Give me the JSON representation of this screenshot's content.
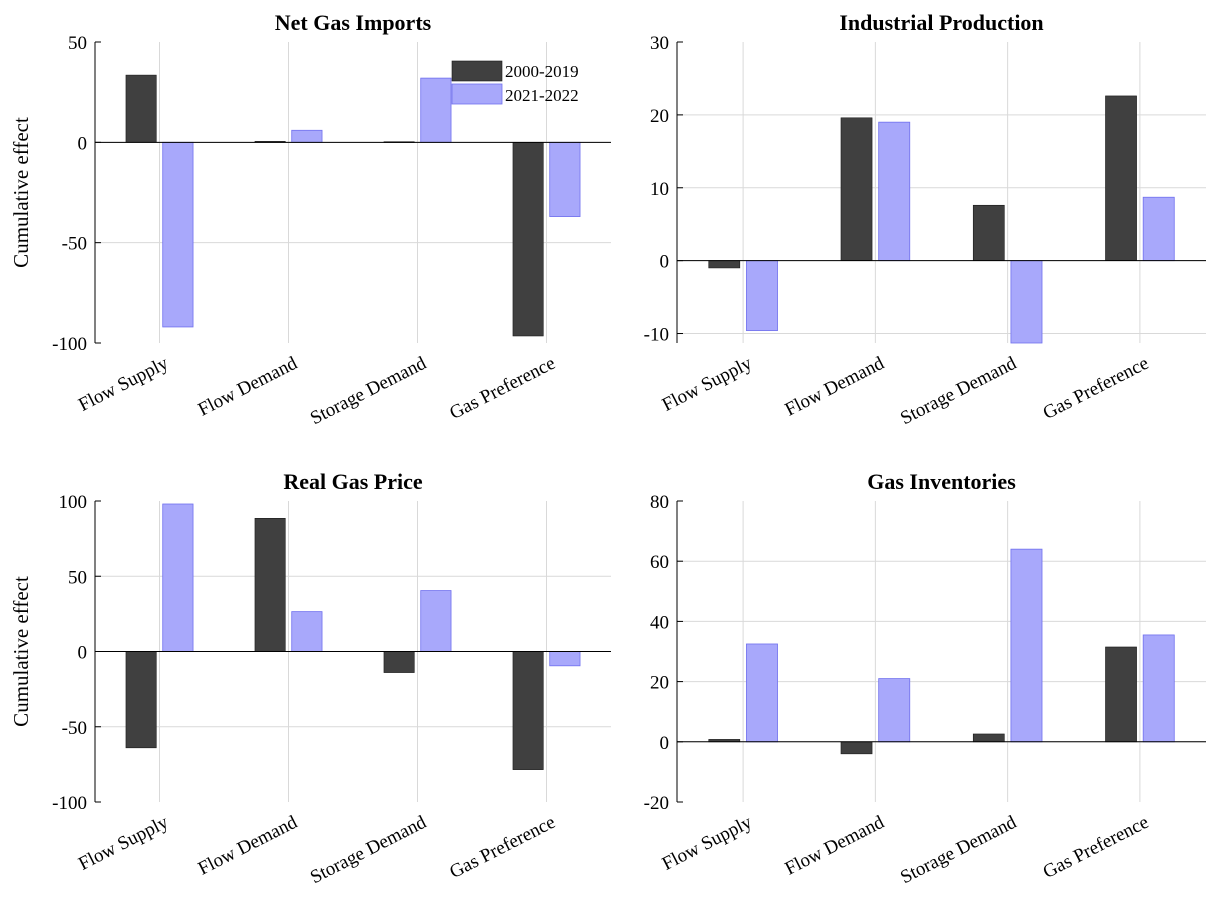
{
  "legend": [
    "2000-2019",
    "2021-2022"
  ],
  "colors": {
    "series1": "#404040",
    "series2": "#a8a8fb",
    "series2_edge": "#7070ee"
  },
  "chart_data": [
    {
      "type": "bar",
      "title": "Net Gas Imports",
      "ylabel": "Cumulative effect",
      "categories": [
        "Flow Supply",
        "Flow Demand",
        "Storage Demand",
        "Gas Preference"
      ],
      "ylim": [
        -100,
        50
      ],
      "yticks": [
        -100,
        -50,
        0,
        50
      ],
      "ytick_labels": [
        "-100",
        "-50",
        "0",
        "50"
      ],
      "legend_position": "top-right",
      "series": [
        {
          "name": "2000-2019",
          "values": [
            33.5,
            0.5,
            0.3,
            -96.5
          ]
        },
        {
          "name": "2021-2022",
          "values": [
            -92,
            6,
            32,
            -37
          ]
        }
      ]
    },
    {
      "type": "bar",
      "title": "Industrial Production",
      "ylabel": "",
      "categories": [
        "Flow Supply",
        "Flow Demand",
        "Storage Demand",
        "Gas Preference"
      ],
      "ylim": [
        -11.3,
        30
      ],
      "yticks": [
        -10,
        0,
        10,
        20,
        30
      ],
      "ytick_labels": [
        "-10",
        "0",
        "10",
        "20",
        "30"
      ],
      "series": [
        {
          "name": "2000-2019",
          "values": [
            -1,
            19.6,
            7.6,
            22.6
          ]
        },
        {
          "name": "2021-2022",
          "values": [
            -9.6,
            19,
            -11.3,
            8.7
          ]
        }
      ]
    },
    {
      "type": "bar",
      "title": "Real Gas Price",
      "ylabel": "Cumulative effect",
      "categories": [
        "Flow Supply",
        "Flow Demand",
        "Storage Demand",
        "Gas Preference"
      ],
      "ylim": [
        -100,
        100
      ],
      "yticks": [
        -100,
        -50,
        0,
        50,
        100
      ],
      "ytick_labels": [
        "-100",
        "-50",
        "0",
        "50",
        "100"
      ],
      "series": [
        {
          "name": "2000-2019",
          "values": [
            -64,
            88.5,
            -14,
            -78.5
          ]
        },
        {
          "name": "2021-2022",
          "values": [
            98,
            26.5,
            40.5,
            -9.5
          ]
        }
      ]
    },
    {
      "type": "bar",
      "title": "Gas Inventories",
      "ylabel": "",
      "categories": [
        "Flow Supply",
        "Flow Demand",
        "Storage Demand",
        "Gas Preference"
      ],
      "ylim": [
        -20,
        80
      ],
      "yticks": [
        -20,
        0,
        20,
        40,
        60,
        80
      ],
      "ytick_labels": [
        "-20",
        "0",
        "20",
        "40",
        "60",
        "80"
      ],
      "series": [
        {
          "name": "2000-2019",
          "values": [
            0.8,
            -4,
            2.6,
            31.5
          ]
        },
        {
          "name": "2021-2022",
          "values": [
            32.5,
            21,
            64,
            35.5
          ]
        }
      ]
    }
  ]
}
